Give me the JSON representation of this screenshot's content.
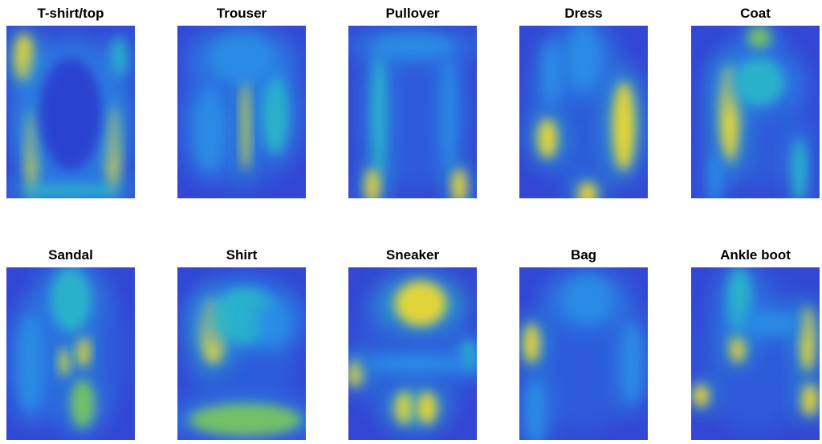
{
  "panels": [
    {
      "title": "T-shirt/top"
    },
    {
      "title": "Trouser"
    },
    {
      "title": "Pullover"
    },
    {
      "title": "Dress"
    },
    {
      "title": "Coat"
    },
    {
      "title": "Sandal"
    },
    {
      "title": "Shirt"
    },
    {
      "title": "Sneaker"
    },
    {
      "title": "Bag"
    },
    {
      "title": "Ankle boot"
    }
  ]
}
